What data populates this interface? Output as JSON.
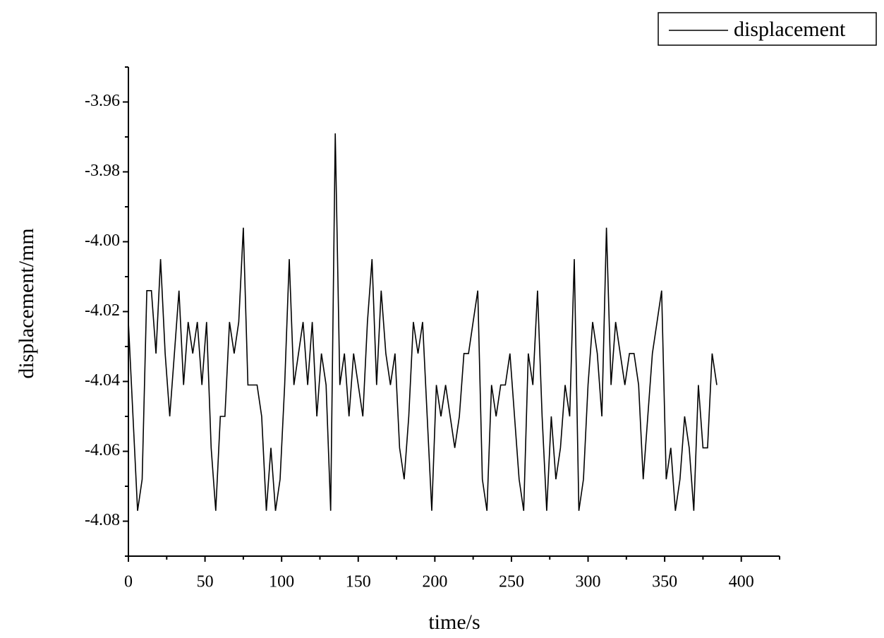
{
  "chart_data": {
    "type": "line",
    "x_label": "time/s",
    "y_label": "displacement/mm",
    "x": [
      0,
      3,
      6,
      9,
      12,
      15,
      18,
      21,
      24,
      27,
      30,
      33,
      36,
      39,
      42,
      45,
      48,
      51,
      54,
      57,
      60,
      63,
      66,
      69,
      72,
      75,
      78,
      81,
      84,
      87,
      90,
      93,
      96,
      99,
      102,
      105,
      108,
      111,
      114,
      117,
      120,
      123,
      126,
      129,
      132,
      135,
      138,
      141,
      144,
      147,
      150,
      153,
      156,
      159,
      162,
      165,
      168,
      171,
      174,
      177,
      180,
      183,
      186,
      189,
      192,
      195,
      198,
      201,
      204,
      207,
      210,
      213,
      216,
      219,
      222,
      225,
      228,
      231,
      234,
      237,
      240,
      243,
      246,
      249,
      252,
      255,
      258,
      261,
      264,
      267,
      270,
      273,
      276,
      279,
      282,
      285,
      288,
      291,
      294,
      297,
      300,
      303,
      306,
      309,
      312,
      315,
      318,
      321,
      324,
      327,
      330,
      333,
      336,
      339,
      342,
      345,
      348,
      351,
      354,
      357,
      360,
      363,
      366,
      369,
      372,
      375,
      378,
      381,
      384
    ],
    "series": [
      {
        "name": "displacement",
        "color": "#000000",
        "values": [
          -4.023,
          -4.05,
          -4.077,
          -4.068,
          -4.014,
          -4.014,
          -4.032,
          -4.005,
          -4.032,
          -4.05,
          -4.032,
          -4.014,
          -4.041,
          -4.023,
          -4.032,
          -4.023,
          -4.041,
          -4.023,
          -4.059,
          -4.077,
          -4.05,
          -4.05,
          -4.023,
          -4.032,
          -4.023,
          -3.996,
          -4.041,
          -4.041,
          -4.041,
          -4.05,
          -4.077,
          -4.059,
          -4.077,
          -4.068,
          -4.041,
          -4.005,
          -4.041,
          -4.032,
          -4.023,
          -4.041,
          -4.023,
          -4.05,
          -4.032,
          -4.041,
          -4.077,
          -3.969,
          -4.041,
          -4.032,
          -4.05,
          -4.032,
          -4.041,
          -4.05,
          -4.023,
          -4.005,
          -4.041,
          -4.014,
          -4.032,
          -4.041,
          -4.032,
          -4.059,
          -4.068,
          -4.05,
          -4.023,
          -4.032,
          -4.023,
          -4.05,
          -4.077,
          -4.041,
          -4.05,
          -4.041,
          -4.05,
          -4.059,
          -4.05,
          -4.032,
          -4.032,
          -4.023,
          -4.014,
          -4.068,
          -4.077,
          -4.041,
          -4.05,
          -4.041,
          -4.041,
          -4.032,
          -4.05,
          -4.068,
          -4.077,
          -4.032,
          -4.041,
          -4.014,
          -4.05,
          -4.077,
          -4.05,
          -4.068,
          -4.059,
          -4.041,
          -4.05,
          -4.005,
          -4.077,
          -4.068,
          -4.041,
          -4.023,
          -4.032,
          -4.05,
          -3.996,
          -4.041,
          -4.023,
          -4.032,
          -4.041,
          -4.032,
          -4.032,
          -4.041,
          -4.068,
          -4.05,
          -4.032,
          -4.023,
          -4.014,
          -4.068,
          -4.059,
          -4.077,
          -4.068,
          -4.05,
          -4.059,
          -4.077,
          -4.041,
          -4.059,
          -4.059,
          -4.032,
          -4.041
        ]
      }
    ],
    "xlim": [
      0,
      425
    ],
    "xticks": [
      0,
      50,
      100,
      150,
      200,
      250,
      300,
      350,
      400
    ],
    "ylim": [
      -4.09,
      -3.95
    ],
    "yticks": [
      -3.96,
      -3.98,
      {
        "value": -4,
        "label": "-4.00"
      },
      -4.02,
      -4.04,
      -4.06,
      -4.08
    ],
    "legend": "top-right",
    "grid": false
  }
}
